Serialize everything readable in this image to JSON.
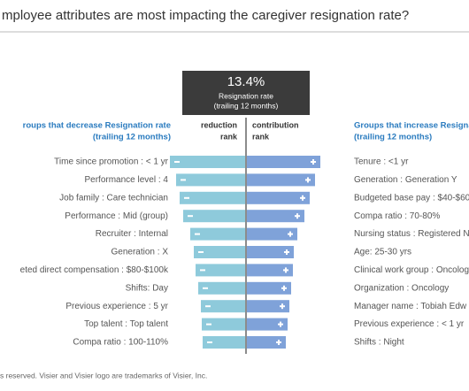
{
  "title": "mployee attributes are most impacting the caregiver resignation rate?",
  "headline": {
    "rate": "13.4%",
    "label": "Resignation rate",
    "sublabel": "(trailing 12 months)"
  },
  "footer": "s reserved. Visier and Visier logo are trademarks of Visier, Inc.",
  "chart_data": {
    "type": "tornado",
    "left": {
      "title": "roups that decrease Resignation rate",
      "subtitle": "(trailing 12 months)",
      "rank_header": [
        "reduction",
        "rank"
      ],
      "color": "#8ecadb",
      "categories": [
        "Time since promotion : < 1 yr",
        "Performance level : 4",
        "Job family : Care technician",
        "Performance : Mid (group)",
        "Recruiter :  Internal",
        "Generation : X",
        "eted direct compensation : $80-$100k",
        "Shifts: Day",
        "Previous experience : 5 yr",
        "Top talent : Top talent",
        "Compa ratio : 100-110%"
      ],
      "values": [
        85,
        78,
        74,
        70,
        62,
        58,
        56,
        53,
        50,
        49,
        48
      ]
    },
    "right": {
      "title": "Groups that increase Resigna",
      "subtitle": "(trailing 12 months)",
      "rank_header": [
        "contribution",
        "rank"
      ],
      "color": "#7fa2d9",
      "categories": [
        "Tenure : <1 yr",
        "Generation : Generation Y",
        "Budgeted base pay : $40-$60",
        "Compa ratio : 70-80%",
        "Nursing status : Registered N",
        "Age: 25-30 yrs",
        "Clinical work group : Oncolog",
        "Organization : Oncology",
        "Manager name : Tobiah Edw",
        "Previous experience : < 1 yr",
        "Shifts : Night"
      ],
      "values": [
        83,
        77,
        71,
        65,
        57,
        53,
        52,
        50,
        48,
        46,
        44
      ]
    }
  }
}
